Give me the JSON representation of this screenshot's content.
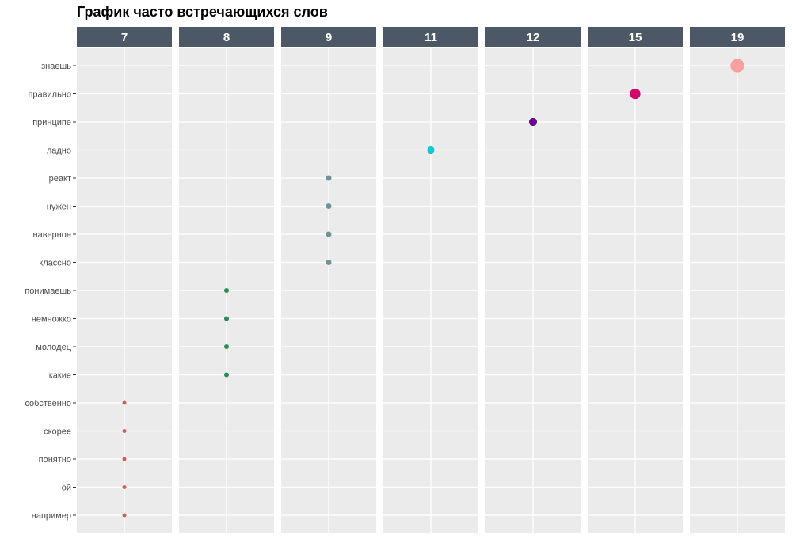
{
  "chart_data": {
    "type": "scatter",
    "title": "График часто встречающихся слов",
    "facets": [
      "7",
      "8",
      "9",
      "11",
      "12",
      "15",
      "19"
    ],
    "categories": [
      "знаешь",
      "правильно",
      "принципе",
      "ладно",
      "реакт",
      "нужен",
      "наверное",
      "классно",
      "понимаешь",
      "немножко",
      "молодец",
      "какие",
      "собственно",
      "скорее",
      "понятно",
      "ой",
      "например"
    ],
    "points": [
      {
        "word": "знаешь",
        "facet": "19",
        "color": "#F8A0A0",
        "size": 19
      },
      {
        "word": "правильно",
        "facet": "15",
        "color": "#D1086A",
        "size": 15
      },
      {
        "word": "принципе",
        "facet": "12",
        "color": "#68028F",
        "size": 12
      },
      {
        "word": "ладно",
        "facet": "11",
        "color": "#12C7D0",
        "size": 11
      },
      {
        "word": "реакт",
        "facet": "9",
        "color": "#6B9599",
        "size": 9
      },
      {
        "word": "нужен",
        "facet": "9",
        "color": "#6B9599",
        "size": 9
      },
      {
        "word": "наверное",
        "facet": "9",
        "color": "#6B9599",
        "size": 9
      },
      {
        "word": "классно",
        "facet": "9",
        "color": "#6B9599",
        "size": 9
      },
      {
        "word": "понимаешь",
        "facet": "8",
        "color": "#2E8B57",
        "size": 8
      },
      {
        "word": "немножко",
        "facet": "8",
        "color": "#2E8B57",
        "size": 8
      },
      {
        "word": "молодец",
        "facet": "8",
        "color": "#2E8B57",
        "size": 8
      },
      {
        "word": "какие",
        "facet": "8",
        "color": "#2E8B57",
        "size": 8
      },
      {
        "word": "собственно",
        "facet": "7",
        "color": "#C8605E",
        "size": 7
      },
      {
        "word": "скорее",
        "facet": "7",
        "color": "#C8605E",
        "size": 7
      },
      {
        "word": "понятно",
        "facet": "7",
        "color": "#C8605E",
        "size": 7
      },
      {
        "word": "ой",
        "facet": "7",
        "color": "#C8605E",
        "size": 7
      },
      {
        "word": "например",
        "facet": "7",
        "color": "#C8605E",
        "size": 7
      }
    ],
    "legend": "none",
    "grid": true,
    "colors": {
      "strip_background": "#4D5866",
      "strip_text": "#FFFFFF",
      "panel_background": "#EBEBEB",
      "gridline": "#FFFFFF",
      "axis_text": "#4D4D4D"
    }
  }
}
